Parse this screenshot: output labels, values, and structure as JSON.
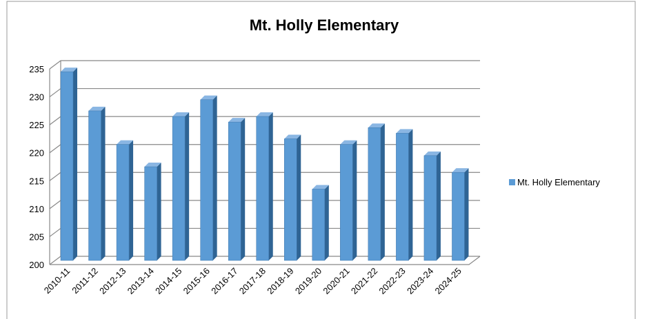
{
  "chart_data": {
    "type": "bar",
    "title": "Mt. Holly Elementary",
    "categories": [
      "2010-11",
      "2011-12",
      "2012-13",
      "2013-14",
      "2014-15",
      "2015-16",
      "2016-17",
      "2017-18",
      "2018-19",
      "2019-20",
      "2020-21",
      "2021-22",
      "2022-23",
      "2023-24",
      "2024-25"
    ],
    "series": [
      {
        "name": "Mt. Holly Elementary",
        "color": "#5b9bd5",
        "values": [
          234,
          227,
          221,
          217,
          226,
          229,
          225,
          226,
          222,
          213,
          221,
          224,
          223,
          219,
          216
        ]
      }
    ],
    "ylim": [
      200,
      235
    ],
    "yticks": [
      200,
      205,
      210,
      215,
      220,
      225,
      230,
      235
    ],
    "grid": true,
    "legend": "right"
  }
}
